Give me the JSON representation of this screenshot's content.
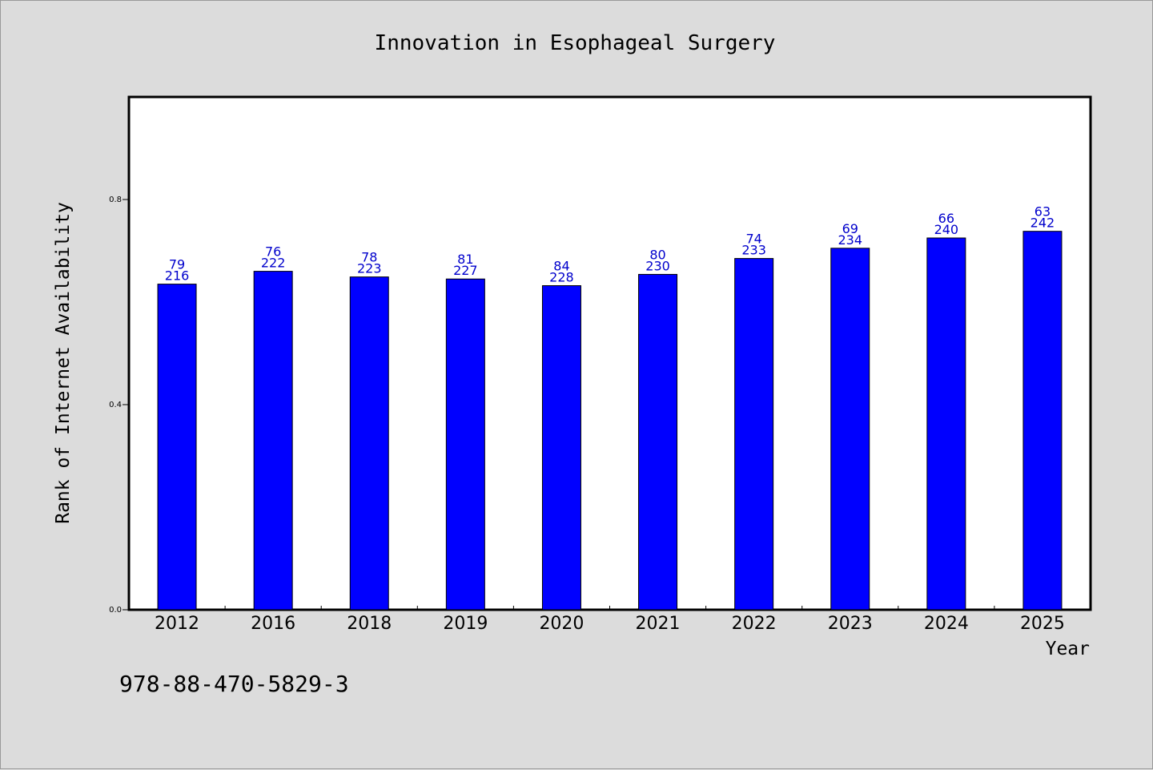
{
  "chart_data": {
    "type": "bar",
    "title": "Innovation in Esophageal Surgery",
    "xlabel": "Year",
    "ylabel": "Rank of Internet Availability",
    "categories": [
      "2012",
      "2016",
      "2018",
      "2019",
      "2020",
      "2021",
      "2022",
      "2023",
      "2024",
      "2025"
    ],
    "series": [
      {
        "values": [
          0.635,
          0.66,
          0.649,
          0.645,
          0.632,
          0.654,
          0.685,
          0.705,
          0.725,
          0.738
        ],
        "color": "#0000ff"
      }
    ],
    "data_labels": {
      "top": [
        "79",
        "76",
        "78",
        "81",
        "84",
        "80",
        "74",
        "69",
        "66",
        "63"
      ],
      "bottom": [
        "216",
        "222",
        "223",
        "227",
        "228",
        "230",
        "233",
        "234",
        "240",
        "242"
      ]
    },
    "yticks": [
      0.0,
      0.4,
      0.8
    ],
    "ytick_labels": [
      "0.0",
      "0.4",
      "0.8"
    ],
    "ylim": [
      0,
      1.0
    ],
    "grid": false,
    "legend": "none"
  },
  "footer": {
    "code": "978-88-470-5829-3"
  },
  "colors": {
    "background": "#dcdcdc",
    "plot_background": "#ffffff",
    "bar": "#0000ff",
    "data_label": "#0000cc"
  }
}
